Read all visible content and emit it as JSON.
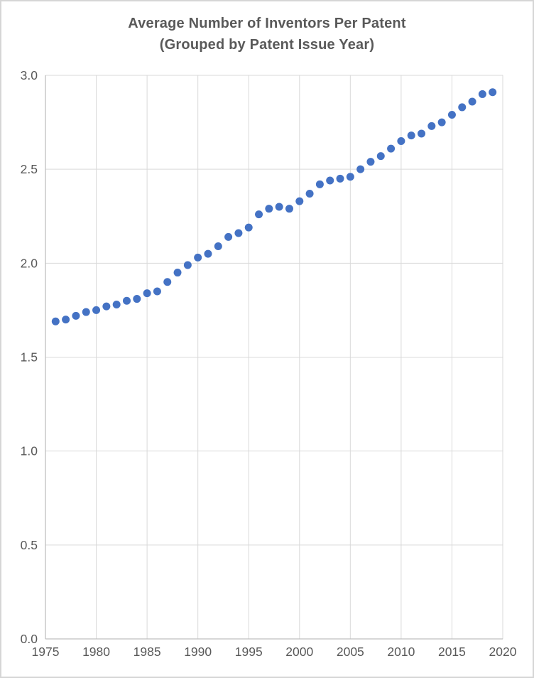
{
  "chart": {
    "title_line1": "Average Number of Inventors Per Patent",
    "title_line2": "(Grouped by Patent Issue Year)"
  },
  "colors": {
    "marker": "#4472C4",
    "gridline": "#D9D9D9",
    "axis_line": "#BFBFBF",
    "text": "#595959",
    "border": "#D6D6D6"
  },
  "chart_data": {
    "type": "scatter",
    "title": "Average Number of Inventors Per Patent (Grouped by Patent Issue Year)",
    "xlabel": "",
    "ylabel": "",
    "xlim": [
      1975,
      2020
    ],
    "ylim": [
      0.0,
      3.0
    ],
    "x_ticks": [
      1975,
      1980,
      1985,
      1990,
      1995,
      2000,
      2005,
      2010,
      2015,
      2020
    ],
    "y_ticks": [
      0.0,
      0.5,
      1.0,
      1.5,
      2.0,
      2.5,
      3.0
    ],
    "grid": true,
    "legend": false,
    "series": [
      {
        "x": [
          1976,
          1977,
          1978,
          1979,
          1980,
          1981,
          1982,
          1983,
          1984,
          1985,
          1986,
          1987,
          1988,
          1989,
          1990,
          1991,
          1992,
          1993,
          1994,
          1995,
          1996,
          1997,
          1998,
          1999,
          2000,
          2001,
          2002,
          2003,
          2004,
          2005,
          2006,
          2007,
          2008,
          2009,
          2010,
          2011,
          2012,
          2013,
          2014,
          2015,
          2016,
          2017,
          2018,
          2019
        ],
        "y": [
          1.69,
          1.7,
          1.72,
          1.74,
          1.75,
          1.77,
          1.78,
          1.8,
          1.81,
          1.84,
          1.85,
          1.9,
          1.95,
          1.99,
          2.03,
          2.05,
          2.09,
          2.14,
          2.16,
          2.19,
          2.26,
          2.29,
          2.3,
          2.29,
          2.33,
          2.37,
          2.42,
          2.44,
          2.45,
          2.46,
          2.5,
          2.54,
          2.57,
          2.61,
          2.65,
          2.68,
          2.69,
          2.73,
          2.75,
          2.79,
          2.83,
          2.86,
          2.9,
          2.91
        ]
      }
    ]
  }
}
